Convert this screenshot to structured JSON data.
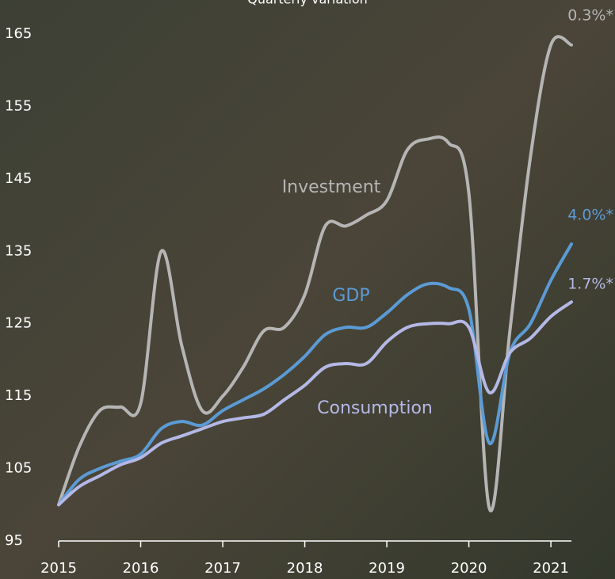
{
  "chart_data": {
    "type": "line",
    "title": "Quarterly variation",
    "x": [
      2015.0,
      2015.25,
      2015.5,
      2015.75,
      2016.0,
      2016.25,
      2016.5,
      2016.75,
      2017.0,
      2017.25,
      2017.5,
      2017.75,
      2018.0,
      2018.25,
      2018.5,
      2018.75,
      2019.0,
      2019.25,
      2019.5,
      2019.75,
      2020.0,
      2020.25,
      2020.5,
      2020.75,
      2021.0,
      2021.25
    ],
    "series": [
      {
        "name": "Investment",
        "color": "#b5b5b5",
        "end_label": "0.3%*",
        "values": [
          100,
          108,
          113,
          113.5,
          114,
          135,
          122,
          113,
          115,
          119,
          124,
          124.5,
          129,
          138.5,
          138.5,
          140,
          142,
          149,
          150.5,
          150,
          143,
          99.5,
          124,
          148,
          163.5,
          163.5
        ]
      },
      {
        "name": "GDP",
        "color": "#5b9bd5",
        "end_label": "4.0%*",
        "values": [
          100,
          103.5,
          105,
          106,
          107,
          110.5,
          111.5,
          111,
          113,
          114.5,
          116,
          118,
          120.5,
          123.5,
          124.5,
          124.5,
          126.5,
          129,
          130.5,
          130,
          127,
          108.5,
          121,
          125,
          131,
          136
        ]
      },
      {
        "name": "Consumption",
        "color": "#b4b8e6",
        "end_label": "1.7%*",
        "values": [
          100,
          102.5,
          104,
          105.5,
          106.5,
          108.5,
          109.5,
          110.5,
          111.5,
          112,
          112.5,
          114.5,
          116.5,
          119,
          119.5,
          119.5,
          122.5,
          124.5,
          125,
          125,
          124.5,
          115.5,
          121,
          123,
          126,
          128
        ]
      }
    ],
    "xlim": [
      2015,
      2021.25
    ],
    "xticks": [
      2015,
      2016,
      2017,
      2018,
      2019,
      2020,
      2021
    ],
    "ylim": [
      95,
      165
    ],
    "yticks": [
      95,
      105,
      115,
      125,
      135,
      145,
      155,
      165
    ]
  }
}
